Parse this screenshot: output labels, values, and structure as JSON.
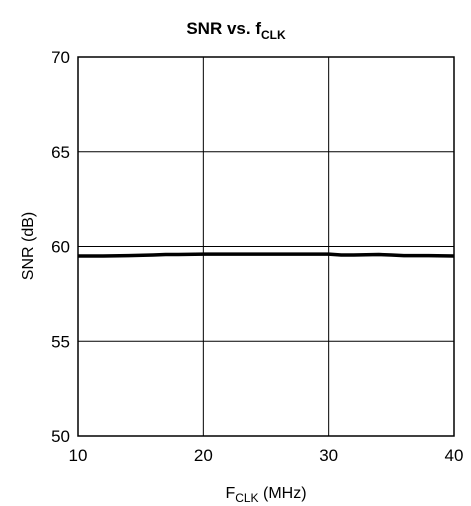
{
  "chart_data": {
    "type": "line",
    "title": {
      "main": "SNR vs. f",
      "sub": "CLK"
    },
    "xlabel": {
      "main": "F",
      "sub": "CLK",
      "rest": " (MHz)"
    },
    "ylabel": "SNR (dB)",
    "xlim": [
      10,
      40
    ],
    "ylim": [
      50,
      70
    ],
    "xticks": [
      10,
      20,
      30,
      40
    ],
    "yticks": [
      50,
      55,
      60,
      65,
      70
    ],
    "grid": true,
    "series": [
      {
        "x": [
          10,
          12,
          14,
          16,
          17,
          18,
          20,
          22,
          24,
          26,
          28,
          30,
          31,
          32,
          34,
          35,
          36,
          38,
          40
        ],
        "y": [
          59.5,
          59.5,
          59.52,
          59.55,
          59.58,
          59.58,
          59.6,
          59.6,
          59.6,
          59.6,
          59.6,
          59.6,
          59.55,
          59.55,
          59.58,
          59.55,
          59.52,
          59.52,
          59.5
        ],
        "color": "#000000"
      }
    ]
  }
}
